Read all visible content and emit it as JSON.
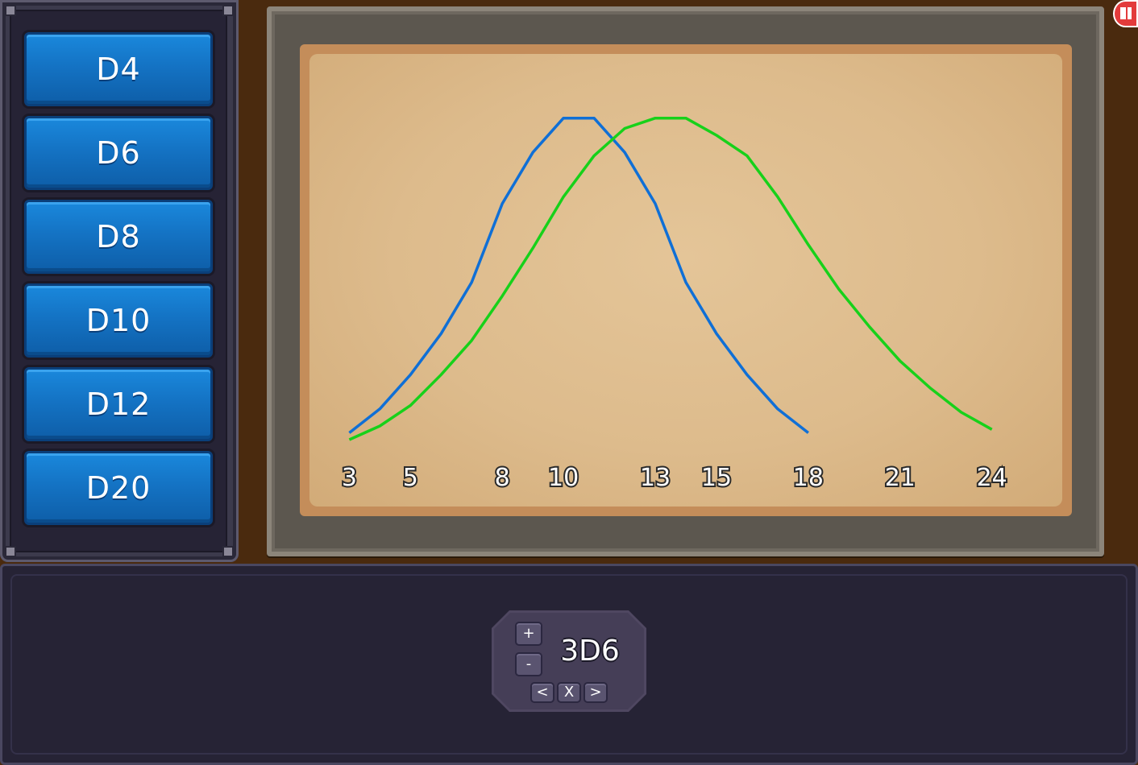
{
  "dice_buttons": [
    {
      "label": "D4"
    },
    {
      "label": "D6"
    },
    {
      "label": "D8"
    },
    {
      "label": "D10"
    },
    {
      "label": "D12"
    },
    {
      "label": "D20"
    }
  ],
  "dice_widget": {
    "expression": "3D6",
    "plus_label": "+",
    "minus_label": "-",
    "prev_label": "<",
    "remove_label": "X",
    "next_label": ">"
  },
  "exit_icon": "exit-door-icon",
  "colors": {
    "button_blue": "#1473c4",
    "series_blue": "#0f6fd6",
    "series_green": "#17d11a",
    "parchment": "#ddbb8c"
  },
  "chart_data": {
    "type": "line",
    "x_tick_labels": [
      "3",
      "5",
      "8",
      "10",
      "13",
      "15",
      "18",
      "21",
      "24"
    ],
    "x_ticks": [
      3,
      5,
      8,
      10,
      13,
      15,
      18,
      21,
      24
    ],
    "xlim": [
      1.7,
      26.3
    ],
    "ylim": [
      0,
      1.05
    ],
    "grid": false,
    "legend": "none",
    "series": [
      {
        "color": "#0f6fd6",
        "x": [
          3,
          4,
          5,
          6,
          7,
          8,
          9,
          10,
          11,
          12,
          13,
          14,
          15,
          16,
          17,
          18
        ],
        "y": [
          0.02,
          0.09,
          0.19,
          0.31,
          0.46,
          0.69,
          0.84,
          0.94,
          0.94,
          0.84,
          0.69,
          0.46,
          0.31,
          0.19,
          0.09,
          0.02
        ]
      },
      {
        "color": "#17d11a",
        "x": [
          3,
          4,
          5,
          6,
          7,
          8,
          9,
          10,
          11,
          12,
          13,
          14,
          15,
          16,
          17,
          18,
          19,
          20,
          21,
          22,
          23,
          24
        ],
        "y": [
          0.0,
          0.04,
          0.1,
          0.19,
          0.29,
          0.42,
          0.56,
          0.71,
          0.83,
          0.91,
          0.94,
          0.94,
          0.89,
          0.83,
          0.71,
          0.57,
          0.44,
          0.33,
          0.23,
          0.15,
          0.08,
          0.03
        ]
      }
    ]
  }
}
